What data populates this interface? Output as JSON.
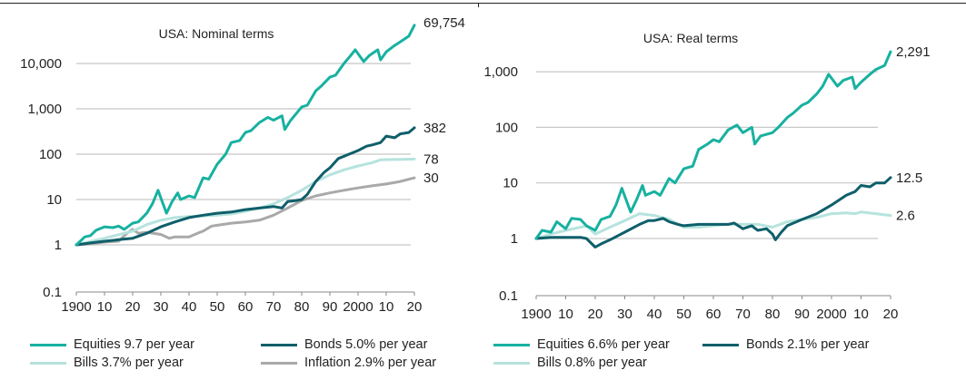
{
  "chart_data": [
    {
      "type": "line",
      "title": "USA: Nominal terms",
      "xlabel": "",
      "ylabel": "",
      "yscale": "log",
      "ylim": [
        0.1,
        70000
      ],
      "yticks": [
        0.1,
        1,
        10,
        100,
        1000,
        10000
      ],
      "ytick_labels": [
        "0.1",
        "1",
        "10",
        "100",
        "1,000",
        "10,000"
      ],
      "xlim": [
        1900,
        2020
      ],
      "xticks": [
        1900,
        1910,
        1920,
        1930,
        1940,
        1950,
        1960,
        1970,
        1980,
        1990,
        2000,
        2010,
        2020
      ],
      "xtick_labels": [
        "1900",
        "10",
        "20",
        "30",
        "40",
        "50",
        "60",
        "70",
        "80",
        "90",
        "2000",
        "10",
        "20"
      ],
      "grid": true,
      "legend_position": "bottom",
      "series": [
        {
          "name": "Equities",
          "legend": "Equities  9.7 per year",
          "color": "#17b1a0",
          "end_label": "69,754",
          "x": [
            1900,
            1903,
            1905,
            1907,
            1910,
            1913,
            1915,
            1917,
            1920,
            1922,
            1925,
            1927,
            1929,
            1932,
            1934,
            1936,
            1937,
            1940,
            1942,
            1945,
            1947,
            1950,
            1953,
            1955,
            1958,
            1960,
            1962,
            1965,
            1968,
            1970,
            1973,
            1974,
            1976,
            1980,
            1982,
            1985,
            1987,
            1990,
            1992,
            1995,
            1997,
            1999,
            2002,
            2004,
            2007,
            2008,
            2010,
            2013,
            2015,
            2018,
            2020
          ],
          "values": [
            1,
            1.5,
            1.6,
            2.1,
            2.5,
            2.4,
            2.6,
            2.2,
            3,
            3.2,
            5,
            8,
            16,
            5,
            9,
            14,
            10,
            12,
            11,
            30,
            28,
            60,
            100,
            180,
            200,
            300,
            330,
            500,
            650,
            560,
            700,
            350,
            550,
            1100,
            1200,
            2500,
            3200,
            5000,
            5500,
            10000,
            14000,
            20000,
            11000,
            15000,
            20000,
            12000,
            18000,
            25000,
            30000,
            40000,
            69754
          ]
        },
        {
          "name": "Bonds",
          "legend": "Bonds  5.0% per year",
          "color": "#0e5f6a",
          "end_label": "382",
          "x": [
            1900,
            1905,
            1910,
            1915,
            1920,
            1925,
            1930,
            1935,
            1940,
            1945,
            1950,
            1955,
            1960,
            1965,
            1970,
            1973,
            1975,
            1978,
            1980,
            1982,
            1985,
            1988,
            1990,
            1993,
            1995,
            2000,
            2003,
            2005,
            2008,
            2010,
            2013,
            2015,
            2018,
            2020
          ],
          "values": [
            1,
            1.1,
            1.2,
            1.3,
            1.4,
            1.8,
            2.5,
            3.2,
            4,
            4.5,
            5,
            5.3,
            6,
            6.5,
            7,
            6.5,
            9,
            9.5,
            10,
            13,
            25,
            40,
            50,
            80,
            90,
            120,
            150,
            160,
            180,
            250,
            230,
            280,
            300,
            382
          ]
        },
        {
          "name": "Bills",
          "legend": "Bills  3.7% per year",
          "color": "#b6e3de",
          "end_label": "78",
          "x": [
            1900,
            1910,
            1920,
            1925,
            1930,
            1935,
            1940,
            1945,
            1950,
            1955,
            1960,
            1965,
            1970,
            1975,
            1980,
            1985,
            1990,
            1995,
            2000,
            2005,
            2008,
            2010,
            2015,
            2020
          ],
          "values": [
            1,
            1.4,
            2,
            2.8,
            3.5,
            4,
            4.2,
            4.3,
            4.5,
            4.8,
            5.5,
            6.5,
            8,
            11,
            16,
            25,
            35,
            45,
            55,
            65,
            75,
            76,
            77,
            78
          ]
        },
        {
          "name": "Inflation",
          "legend": "Inflation  2.9% per year",
          "color": "#a9a9a9",
          "end_label": "30",
          "x": [
            1900,
            1905,
            1910,
            1915,
            1918,
            1920,
            1922,
            1925,
            1930,
            1933,
            1935,
            1940,
            1943,
            1945,
            1948,
            1950,
            1955,
            1960,
            1965,
            1970,
            1975,
            1980,
            1985,
            1990,
            1995,
            2000,
            2005,
            2010,
            2015,
            2020
          ],
          "values": [
            1,
            1.05,
            1.15,
            1.2,
            1.8,
            2.2,
            1.8,
            1.9,
            1.7,
            1.4,
            1.5,
            1.5,
            1.8,
            2,
            2.6,
            2.7,
            3.0,
            3.2,
            3.5,
            4.5,
            6.5,
            9.5,
            12,
            14,
            16,
            18,
            20,
            22,
            25,
            30
          ]
        }
      ]
    },
    {
      "type": "line",
      "title": "USA: Real terms",
      "xlabel": "",
      "ylabel": "",
      "yscale": "log",
      "ylim": [
        0.1,
        2300
      ],
      "yticks": [
        0.1,
        1,
        10,
        100,
        1000
      ],
      "ytick_labels": [
        "0.1",
        "1",
        "10",
        "100",
        "1,000"
      ],
      "xlim": [
        1900,
        2020
      ],
      "xticks": [
        1900,
        1910,
        1920,
        1930,
        1940,
        1950,
        1960,
        1970,
        1980,
        1990,
        2000,
        2010,
        2020
      ],
      "xtick_labels": [
        "1900",
        "10",
        "20",
        "30",
        "40",
        "50",
        "60",
        "70",
        "80",
        "90",
        "2000",
        "10",
        "20"
      ],
      "grid": true,
      "legend_position": "bottom",
      "series": [
        {
          "name": "Equities",
          "legend": "Equities  6.6% per year",
          "color": "#17b1a0",
          "end_label": "2,291",
          "x": [
            1900,
            1902,
            1905,
            1907,
            1910,
            1912,
            1915,
            1917,
            1920,
            1922,
            1925,
            1927,
            1929,
            1932,
            1934,
            1936,
            1937,
            1940,
            1942,
            1945,
            1947,
            1950,
            1953,
            1955,
            1958,
            1960,
            1962,
            1965,
            1968,
            1970,
            1973,
            1974,
            1976,
            1980,
            1982,
            1985,
            1987,
            1990,
            1992,
            1995,
            1997,
            1999,
            2002,
            2004,
            2007,
            2008,
            2010,
            2013,
            2015,
            2018,
            2020
          ],
          "values": [
            1,
            1.4,
            1.3,
            2,
            1.5,
            2.3,
            2.2,
            1.7,
            1.4,
            2.2,
            2.5,
            4,
            8,
            3,
            5,
            9,
            6,
            7,
            6,
            12,
            10,
            18,
            20,
            40,
            50,
            60,
            55,
            90,
            110,
            80,
            100,
            50,
            70,
            80,
            100,
            150,
            180,
            250,
            280,
            400,
            550,
            900,
            550,
            700,
            800,
            500,
            650,
            900,
            1100,
            1300,
            2291
          ]
        },
        {
          "name": "Bonds",
          "legend": "Bonds 2.1% per year",
          "color": "#0e5f6a",
          "end_label": "12.5",
          "x": [
            1900,
            1905,
            1910,
            1915,
            1917,
            1920,
            1922,
            1925,
            1930,
            1935,
            1938,
            1940,
            1943,
            1945,
            1948,
            1950,
            1955,
            1960,
            1965,
            1967,
            1970,
            1973,
            1975,
            1978,
            1980,
            1981,
            1983,
            1985,
            1990,
            1995,
            2000,
            2005,
            2008,
            2010,
            2013,
            2015,
            2018,
            2020
          ],
          "values": [
            1,
            1.05,
            1.05,
            1.05,
            1.0,
            0.7,
            0.8,
            0.95,
            1.3,
            1.8,
            2.1,
            2.1,
            2.3,
            2.0,
            1.8,
            1.7,
            1.8,
            1.8,
            1.8,
            1.9,
            1.5,
            1.7,
            1.4,
            1.5,
            1.2,
            0.95,
            1.3,
            1.7,
            2.2,
            2.8,
            4,
            6,
            7,
            9,
            8.5,
            10,
            10,
            12.5
          ]
        },
        {
          "name": "Bills",
          "legend": "Bills 0.8% per year",
          "color": "#b6e3de",
          "end_label": "2.6",
          "x": [
            1900,
            1905,
            1910,
            1915,
            1917,
            1920,
            1925,
            1930,
            1935,
            1940,
            1945,
            1950,
            1955,
            1960,
            1965,
            1970,
            1975,
            1980,
            1985,
            1990,
            1995,
            2000,
            2005,
            2008,
            2010,
            2015,
            2020
          ],
          "values": [
            1,
            1.2,
            1.4,
            1.6,
            1.7,
            1.2,
            1.6,
            2.1,
            2.8,
            2.6,
            2.2,
            1.6,
            1.6,
            1.7,
            1.8,
            1.8,
            1.8,
            1.6,
            2.0,
            2.2,
            2.4,
            2.8,
            2.9,
            2.8,
            3.0,
            2.8,
            2.6
          ]
        }
      ]
    }
  ]
}
